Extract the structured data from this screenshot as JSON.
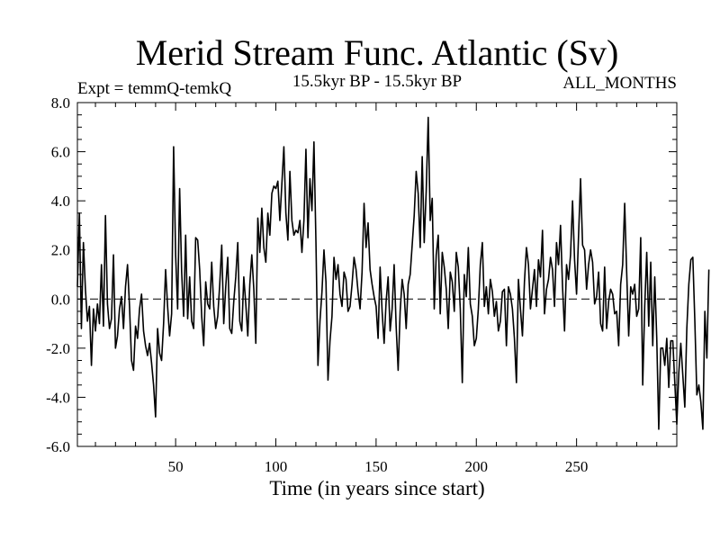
{
  "chart_data": {
    "type": "line",
    "title": "Merid Stream Func. Atlantic (Sv)",
    "subtitle_left": "Expt = temmQ-temkQ",
    "subtitle_center": "15.5kyr BP - 15.5kyr BP",
    "subtitle_right": "ALL_MONTHS",
    "xlabel": "Time (in years since start)",
    "ylabel": "",
    "xlim": [
      1,
      300
    ],
    "ylim": [
      -6.0,
      8.0
    ],
    "xticks": [
      50,
      100,
      150,
      200,
      250
    ],
    "xtick_labels": [
      "50",
      "100",
      "150",
      "200",
      "250"
    ],
    "yticks": [
      -6.0,
      -4.0,
      -2.0,
      0.0,
      2.0,
      4.0,
      6.0,
      8.0
    ],
    "ytick_labels": [
      "-6.0",
      "-4.0",
      "-2.0",
      "0.0",
      "2.0",
      "4.0",
      "6.0",
      "8.0"
    ],
    "reference_line": 0.0,
    "grid": false,
    "series": [
      {
        "name": "Merid Stream Func. Atlantic",
        "x_start": 1,
        "x_step": 1,
        "values": [
          0.5,
          3.5,
          -1.2,
          2.3,
          0.4,
          -0.9,
          -0.3,
          -2.7,
          -0.4,
          -1.3,
          -0.2,
          -1.0,
          1.4,
          -1.1,
          3.4,
          -0.2,
          -1.2,
          -0.8,
          1.8,
          -2.0,
          -1.5,
          -0.4,
          0.1,
          -1.2,
          0.5,
          1.4,
          -0.3,
          -2.5,
          -2.9,
          -1.1,
          -1.6,
          -0.4,
          0.2,
          -1.3,
          -1.9,
          -2.3,
          -1.8,
          -2.6,
          -3.5,
          -4.8,
          -1.2,
          -2.2,
          -2.5,
          -1.0,
          1.2,
          -0.3,
          -1.5,
          -0.6,
          6.2,
          1.8,
          -0.4,
          4.5,
          1.1,
          -0.7,
          2.6,
          -0.8,
          0.9,
          -0.9,
          -1.2,
          2.5,
          2.4,
          1.2,
          -0.7,
          -1.9,
          0.7,
          -0.2,
          -0.4,
          1.5,
          -0.3,
          -1.2,
          -0.7,
          0.6,
          2.2,
          -1.0,
          0.5,
          1.7,
          -1.2,
          -1.4,
          -0.1,
          0.9,
          2.3,
          -0.9,
          -1.3,
          0.9,
          -0.2,
          -1.5,
          0.6,
          1.8,
          0.4,
          -1.8,
          3.3,
          1.9,
          3.7,
          2.1,
          1.5,
          3.5,
          2.6,
          4.3,
          4.6,
          4.5,
          4.8,
          3.2,
          4.7,
          6.2,
          3.5,
          2.4,
          5.2,
          3.2,
          2.6,
          2.8,
          2.7,
          3.2,
          1.9,
          3.2,
          6.1,
          2.5,
          4.9,
          3.6,
          6.4,
          2.3,
          -2.7,
          -0.9,
          0.3,
          2.0,
          0.7,
          -3.3,
          -1.7,
          -0.7,
          1.7,
          0.8,
          1.4,
          0.2,
          -0.3,
          1.1,
          0.8,
          -0.5,
          -0.3,
          0.6,
          1.7,
          1.2,
          0.3,
          -0.4,
          1.1,
          3.9,
          2.1,
          3.1,
          1.2,
          0.6,
          0.1,
          -0.3,
          -1.6,
          1.3,
          -0.5,
          -1.8,
          -0.1,
          0.9,
          -1.3,
          -0.4,
          1.4,
          -1.1,
          -2.9,
          -0.5,
          0.8,
          0.2,
          -1.2,
          0.6,
          1.0,
          2.2,
          3.4,
          5.2,
          4.3,
          2.1,
          5.8,
          2.3,
          4.4,
          7.4,
          3.2,
          4.1,
          -0.4,
          1.8,
          2.6,
          -0.6,
          1.9,
          1.3,
          0.4,
          -1.2,
          1.1,
          0.7,
          -0.5,
          1.9,
          1.3,
          -0.4,
          -3.4,
          1.0,
          0.1,
          2.1,
          -0.2,
          -0.7,
          -1.9,
          -1.6,
          -0.4,
          1.4,
          2.3,
          -0.3,
          0.5,
          -0.6,
          0.8,
          0.3,
          -0.7,
          -0.1,
          -1.3,
          -0.9,
          0.3,
          0.4,
          -1.9,
          0.5,
          0.2,
          -0.4,
          -1.6,
          -3.4,
          0.8,
          -0.4,
          -1.5,
          0.7,
          2.1,
          1.4,
          -0.4,
          0.4,
          1.2,
          -0.3,
          1.6,
          0.9,
          2.8,
          -0.6,
          0.4,
          0.8,
          1.7,
          1.2,
          -0.3,
          2.3,
          1.4,
          3.0,
          0.5,
          -1.3,
          1.4,
          0.8,
          1.8,
          4.0,
          1.6,
          0.2,
          2.6,
          4.9,
          2.2,
          2.0,
          0.4,
          1.4,
          2.0,
          1.5,
          -0.2,
          0.1,
          1.1,
          -1.0,
          -1.3,
          1.3,
          -1.2,
          -0.1,
          0.4,
          0.2,
          -0.6,
          -0.5,
          -1.9,
          0.6,
          1.4,
          3.9,
          1.1,
          -1.5,
          0.5,
          0.2,
          0.6,
          -0.7,
          -0.4,
          2.5,
          -3.5,
          -0.3,
          1.9,
          -1.1,
          1.5,
          -1.9,
          0.9,
          -1.6,
          -5.3,
          -2.0,
          -2.0,
          -2.7,
          -1.6,
          -3.6,
          -1.7,
          -1.7,
          -3.4,
          -5.1,
          -3.0,
          -1.8,
          -3.1,
          -4.4,
          -1.2,
          0.6,
          1.6,
          1.7,
          -0.9,
          -3.9,
          -3.5,
          -4.2,
          -5.3,
          -0.5,
          -2.4,
          1.2
        ]
      }
    ]
  }
}
